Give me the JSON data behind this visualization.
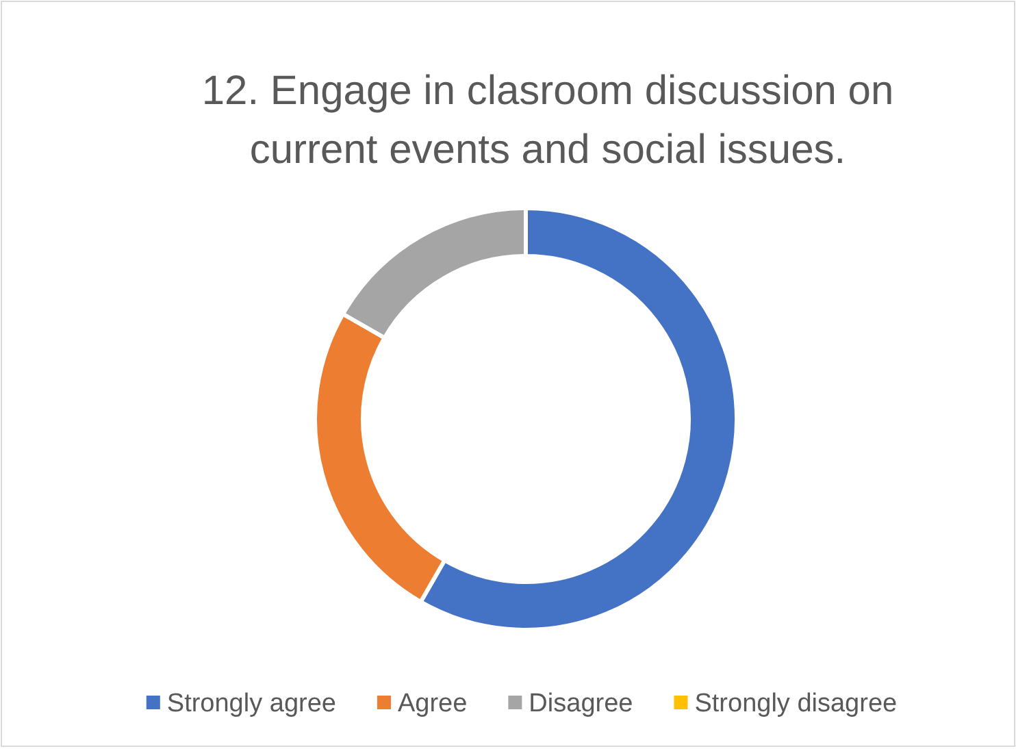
{
  "chart_data": {
    "type": "donut",
    "title": "12. Engage in clasroom discussion on current events and social issues.",
    "categories": [
      "Strongly agree",
      "Agree",
      "Disagree",
      "Strongly disagree"
    ],
    "values": [
      58.3,
      25,
      16.7,
      0
    ],
    "colors": [
      "#4472c4",
      "#ed7d31",
      "#a5a5a5",
      "#ffc000"
    ],
    "legend": "bottom"
  }
}
